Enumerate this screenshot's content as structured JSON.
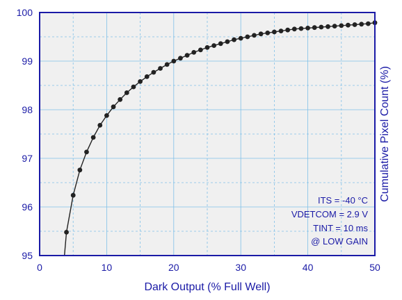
{
  "chart_data": {
    "type": "scatter",
    "title": "",
    "xlabel": "Dark Output (% Full Well)",
    "ylabel": "Cumulative Pixel Count (%)",
    "xlim": [
      0,
      50
    ],
    "ylim": [
      95,
      100
    ],
    "x_ticks": [
      "0",
      "10",
      "20",
      "30",
      "40",
      "50"
    ],
    "y_ticks": [
      "95",
      "96",
      "97",
      "98",
      "99",
      "100"
    ],
    "grid": true,
    "annotations": [
      "ITS = -40 °C",
      "VDETCOM = 2.9 V",
      "TINT = 10 ms",
      "@ LOW GAIN"
    ],
    "colors": {
      "axis": "#1a1aa6",
      "grid": "#7fc0e8",
      "plot_bg": "#f0f0f0",
      "marker": "#222222",
      "line": "#222222"
    },
    "series": [
      {
        "x": [
          4,
          5,
          6,
          7,
          8,
          9,
          10,
          11,
          12,
          13,
          14,
          15,
          16,
          17,
          18,
          19,
          20,
          21,
          22,
          23,
          24,
          25,
          26,
          27,
          28,
          29,
          30,
          31,
          32,
          33,
          34,
          35,
          36,
          37,
          38,
          39,
          40,
          41,
          42,
          43,
          44,
          45,
          46,
          47,
          48,
          49,
          50
        ],
        "values": [
          95.48,
          96.24,
          96.76,
          97.13,
          97.43,
          97.68,
          97.88,
          98.06,
          98.21,
          98.35,
          98.47,
          98.58,
          98.68,
          98.77,
          98.85,
          98.93,
          99.0,
          99.06,
          99.12,
          99.18,
          99.23,
          99.28,
          99.32,
          99.36,
          99.4,
          99.44,
          99.47,
          99.5,
          99.53,
          99.56,
          99.58,
          99.6,
          99.62,
          99.64,
          99.66,
          99.67,
          99.68,
          99.69,
          99.7,
          99.71,
          99.72,
          99.73,
          99.74,
          99.75,
          99.76,
          99.77,
          99.79
        ],
        "curve_start": [
          3.7,
          95.0
        ]
      }
    ]
  }
}
